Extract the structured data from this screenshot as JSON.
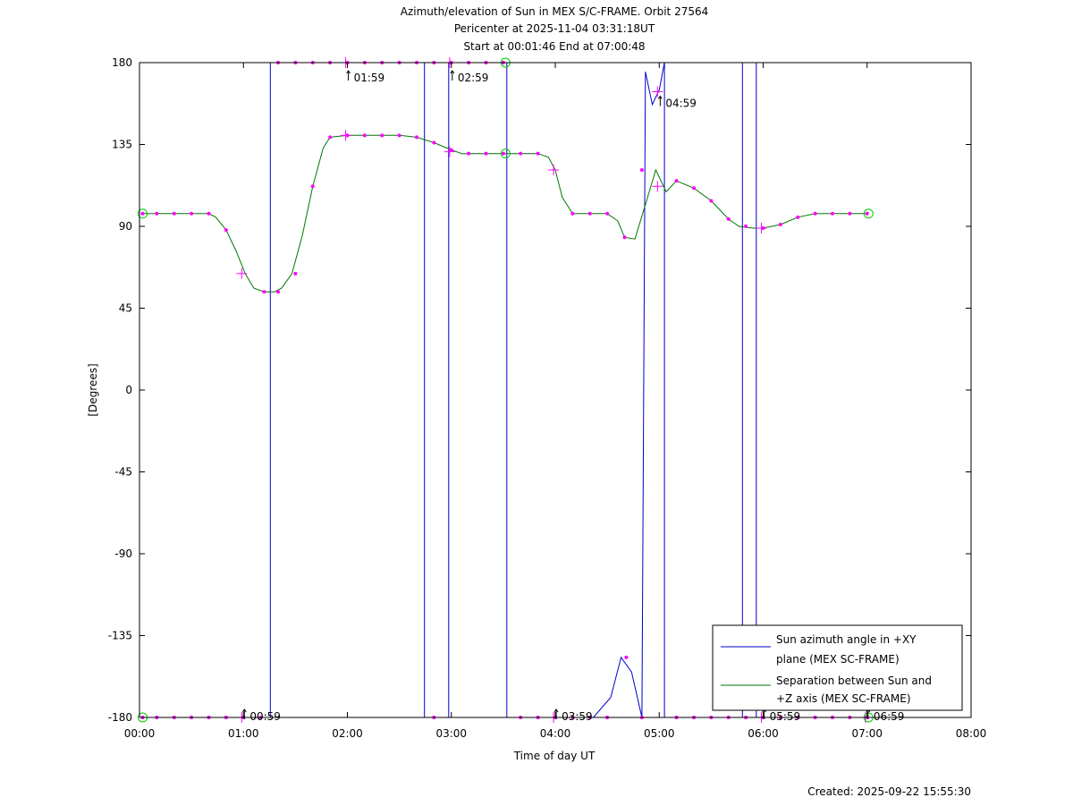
{
  "title_lines": [
    "Azimuth/elevation of Sun in MEX S/C-FRAME.  Orbit 27564",
    "Pericenter at 2025-11-04 03:31:18UT",
    "Start at 00:01:46 End at 07:00:48"
  ],
  "footer": {
    "created": "Created: 2025-09-22 15:55:30"
  },
  "chart_data": {
    "type": "line",
    "xlabel": "Time of day UT",
    "ylabel": "[Degrees]",
    "xlim": [
      0,
      480
    ],
    "ylim": [
      -180,
      180
    ],
    "x_unit": "minutes after 00:00 UT",
    "x_ticks": [
      {
        "v": 0,
        "label": "00:00"
      },
      {
        "v": 60,
        "label": "01:00"
      },
      {
        "v": 120,
        "label": "02:00"
      },
      {
        "v": 180,
        "label": "03:00"
      },
      {
        "v": 240,
        "label": "04:00"
      },
      {
        "v": 300,
        "label": "05:00"
      },
      {
        "v": 360,
        "label": "06:00"
      },
      {
        "v": 420,
        "label": "07:00"
      },
      {
        "v": 480,
        "label": "08:00"
      }
    ],
    "y_ticks": [
      {
        "v": 180,
        "label": "180"
      },
      {
        "v": 135,
        "label": "135"
      },
      {
        "v": 90,
        "label": "90"
      },
      {
        "v": 45,
        "label": "45"
      },
      {
        "v": 0,
        "label": "0"
      },
      {
        "v": -45,
        "label": "-45"
      },
      {
        "v": -90,
        "label": "-90"
      },
      {
        "v": -135,
        "label": "-135"
      },
      {
        "v": -180,
        "label": "-180"
      }
    ],
    "grid": false,
    "legend_position": "bottom-right",
    "series": [
      {
        "name": "Sun azimuth angle in +XY plane (MEX SC-FRAME)",
        "legend_lines": [
          "Sun azimuth angle in +XY",
          "plane (MEX SC-FRAME)"
        ],
        "color": "#0000cc",
        "x": [
          1.8,
          60,
          75.5,
          75.5,
          110,
          164.5,
          164.5,
          178.5,
          178.5,
          178.5,
          178.5,
          212,
          212,
          212,
          212,
          230,
          245,
          262,
          272,
          278,
          284,
          290,
          290,
          292,
          296,
          300,
          303,
          303,
          340,
          348,
          348,
          356,
          356,
          420,
          420.8
        ],
        "y": [
          -180,
          -180,
          -180,
          180,
          180,
          180,
          -180,
          -180,
          180,
          180,
          -180,
          -180,
          180,
          180,
          -180,
          -180,
          -180,
          -180,
          -169,
          -147,
          -155,
          -180,
          -180,
          175,
          157,
          165,
          180,
          -180,
          -180,
          -180,
          180,
          180,
          -180,
          -180,
          -180
        ]
      },
      {
        "name": "Separation between Sun and +Z axis (MEX SC-FRAME)",
        "legend_lines": [
          "Separation between Sun and",
          "+Z axis (MEX SC-FRAME)"
        ],
        "color": "#007700",
        "x": [
          1.8,
          20,
          40,
          44,
          50,
          56,
          61,
          66,
          72,
          78,
          82,
          88,
          94,
          100,
          106,
          110,
          120,
          130,
          140,
          150,
          160,
          170,
          180,
          186,
          196,
          210,
          220,
          230,
          236,
          240,
          244,
          250,
          260,
          270,
          276,
          280,
          286,
          292,
          298,
          300,
          304,
          310,
          320,
          330,
          340,
          346,
          354,
          360,
          370,
          380,
          390,
          400,
          410,
          420.8
        ],
        "y": [
          97,
          97,
          97,
          95,
          88,
          76,
          64,
          56,
          54,
          54,
          56,
          64,
          85,
          112,
          133,
          139,
          140,
          140,
          140,
          140,
          139,
          136,
          132,
          130,
          130,
          130,
          130,
          130,
          128,
          121,
          106,
          97,
          97,
          97,
          93,
          84,
          83,
          102,
          121,
          117,
          109,
          115,
          111,
          104,
          94,
          90,
          89,
          89,
          91,
          95,
          97,
          97,
          97,
          97
        ]
      }
    ],
    "annotations": [
      {
        "x": 59,
        "y": -180,
        "label": "00:59"
      },
      {
        "x": 119,
        "y": 180,
        "label": "01:59"
      },
      {
        "x": 179,
        "y": 180,
        "label": "02:59"
      },
      {
        "x": 239,
        "y": -180,
        "label": "03:59"
      },
      {
        "x": 299,
        "y": 164,
        "label": "04:59"
      },
      {
        "x": 359,
        "y": -180,
        "label": "05:59"
      },
      {
        "x": 419,
        "y": -180,
        "label": "06:59"
      }
    ],
    "dot_markers": [
      [
        1.8,
        -180
      ],
      [
        10,
        -180
      ],
      [
        20,
        -180
      ],
      [
        30,
        -180
      ],
      [
        40,
        -180
      ],
      [
        50,
        -180
      ],
      [
        60,
        -180
      ],
      [
        70,
        -180
      ],
      [
        80,
        180
      ],
      [
        90,
        180
      ],
      [
        100,
        180
      ],
      [
        110,
        180
      ],
      [
        120,
        180
      ],
      [
        130,
        180
      ],
      [
        140,
        180
      ],
      [
        150,
        180
      ],
      [
        160,
        180
      ],
      [
        170,
        180
      ],
      [
        180,
        180
      ],
      [
        190,
        180
      ],
      [
        200,
        180
      ],
      [
        210,
        180
      ],
      [
        170,
        -180
      ],
      [
        220,
        -180
      ],
      [
        230,
        -180
      ],
      [
        240,
        -180
      ],
      [
        250,
        -180
      ],
      [
        260,
        -180
      ],
      [
        270,
        -180
      ],
      [
        281,
        -147
      ],
      [
        290,
        -180
      ],
      [
        310,
        -180
      ],
      [
        320,
        -180
      ],
      [
        330,
        -180
      ],
      [
        340,
        -180
      ],
      [
        350,
        -180
      ],
      [
        360,
        -180
      ],
      [
        370,
        -180
      ],
      [
        380,
        -180
      ],
      [
        390,
        -180
      ],
      [
        400,
        -180
      ],
      [
        410,
        -180
      ],
      [
        420,
        -180
      ],
      [
        1.8,
        97
      ],
      [
        10,
        97
      ],
      [
        20,
        97
      ],
      [
        30,
        97
      ],
      [
        40,
        97
      ],
      [
        50,
        88
      ],
      [
        72,
        54
      ],
      [
        80,
        54
      ],
      [
        90,
        64
      ],
      [
        100,
        112
      ],
      [
        110,
        139
      ],
      [
        120,
        140
      ],
      [
        130,
        140
      ],
      [
        140,
        140
      ],
      [
        150,
        140
      ],
      [
        160,
        139
      ],
      [
        170,
        136
      ],
      [
        180,
        132
      ],
      [
        190,
        130
      ],
      [
        200,
        130
      ],
      [
        210,
        130
      ],
      [
        220,
        130
      ],
      [
        230,
        130
      ],
      [
        250,
        97
      ],
      [
        260,
        97
      ],
      [
        270,
        97
      ],
      [
        280,
        84
      ],
      [
        290,
        121
      ],
      [
        310,
        115
      ],
      [
        320,
        111
      ],
      [
        330,
        104
      ],
      [
        340,
        94
      ],
      [
        350,
        90
      ],
      [
        360,
        89
      ],
      [
        370,
        91
      ],
      [
        380,
        95
      ],
      [
        390,
        97
      ],
      [
        400,
        97
      ],
      [
        410,
        97
      ],
      [
        420,
        97
      ]
    ],
    "cross_markers": [
      [
        59,
        -180
      ],
      [
        119,
        180
      ],
      [
        179,
        180
      ],
      [
        239,
        -180
      ],
      [
        299,
        164
      ],
      [
        359,
        -180
      ],
      [
        419,
        -180
      ],
      [
        59,
        64
      ],
      [
        119,
        140
      ],
      [
        179,
        131
      ],
      [
        239,
        121
      ],
      [
        299,
        112
      ],
      [
        359,
        89
      ]
    ],
    "circle_markers": [
      [
        1.8,
        -180
      ],
      [
        1.8,
        97
      ],
      [
        211.3,
        180
      ],
      [
        211.3,
        130
      ],
      [
        420.8,
        -180
      ],
      [
        420.8,
        97
      ]
    ],
    "colors": {
      "markers": "#ff00ff",
      "circles": "#00cc00",
      "axes": "#000000"
    }
  }
}
